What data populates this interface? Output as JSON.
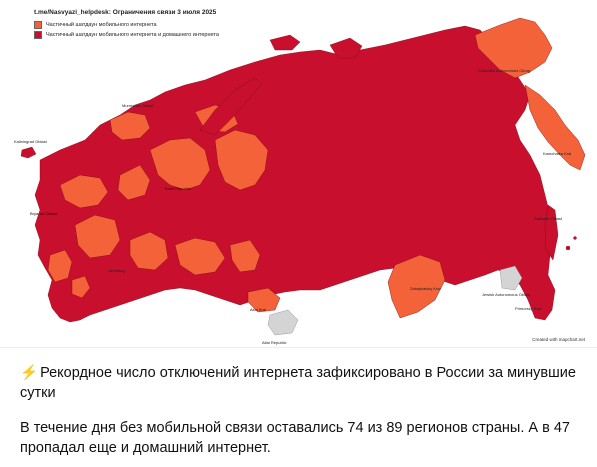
{
  "map": {
    "title": "t.me/Nasvyazi_helpdesk: Ограничения связи 3 июля 2025",
    "legend": [
      {
        "label": "Частичный шатдаун мобильного интернета",
        "color": "#f4623a"
      },
      {
        "label": "Частичный шатдаун мобильного интернета и домашнего интернета",
        "color": "#c8102e"
      }
    ],
    "credit": "Created with mapchart.net",
    "colors": {
      "mobile_only": "#f4623a",
      "mobile_and_home": "#c8102e",
      "none": "#d4d4d4",
      "border": "#7a0a14"
    },
    "region_labels": {
      "murmansk": "Murmansk Oblast",
      "kaliningrad": "Kaliningrad Oblast",
      "chukotka": "Chukotka Autonomous Okrug",
      "kamchatka": "Kamchatka Krai",
      "komi": "Komi Republic",
      "bryansk": "Bryansk Oblast",
      "orenburg": "Orenburg",
      "altai_krai": "Altai Krai",
      "altai_rep": "Altai Republic",
      "zabaykalsky": "Zabaykalsky Krai",
      "jewish": "Jewish Autonomous Oblast",
      "sakhalin": "Sakhalin Oblast",
      "primorsky": "Primorsky Krai"
    }
  },
  "post": {
    "icon": "lightning-icon",
    "icon_glyph": "⚡",
    "headline": "Рекордное число отключений интернета зафиксировано в России за минувшие сутки",
    "body": "В течение дня без мобильной связи оставались 74 из 89 регионов страны. А в 47 пропадал еще и домашний интернет."
  }
}
